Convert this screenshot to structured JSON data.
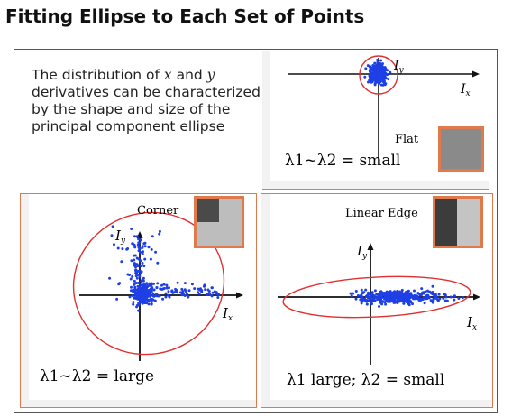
{
  "title": "Fitting Ellipse to Each Set of Points",
  "description": {
    "line1_a": "The distribution of ",
    "x": "x",
    "and": " and ",
    "y": "y",
    "line2": "derivatives can be characterized",
    "line3": "by the shape and size of the",
    "line4": "principal component ellipse"
  },
  "panels": {
    "flat": {
      "label": "Flat",
      "ix": "I",
      "ix_sub": "x",
      "iy": "I",
      "iy_sub": "y",
      "eq": "λ1~λ2 = small",
      "swatch_color": "#8a8a8a"
    },
    "corner": {
      "label": "Corner",
      "ix": "I",
      "ix_sub": "x",
      "iy": "I",
      "iy_sub": "y",
      "eq": "λ1~λ2 = large"
    },
    "edge": {
      "label": "Linear Edge",
      "ix": "I",
      "ix_sub": "x",
      "iy": "I",
      "iy_sub": "y",
      "eq": "λ1 large; λ2 = small"
    }
  },
  "colors": {
    "points": "#1f3fe6",
    "ellipse": "#e03030",
    "border": "#e07a4a"
  }
}
